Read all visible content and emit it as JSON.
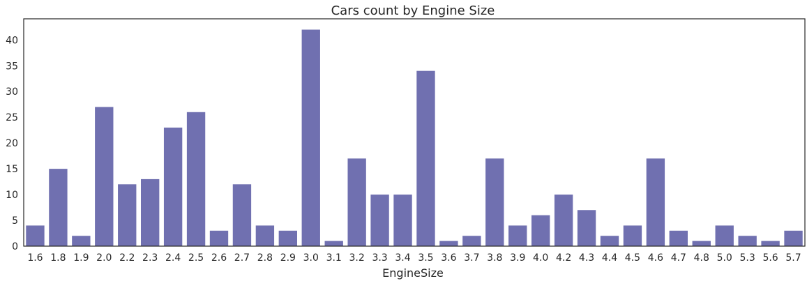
{
  "chart_data": {
    "type": "bar",
    "title": "Cars count by Engine Size",
    "xlabel": "EngineSize",
    "ylabel": "",
    "categories": [
      "1.6",
      "1.8",
      "1.9",
      "2.0",
      "2.2",
      "2.3",
      "2.4",
      "2.5",
      "2.6",
      "2.7",
      "2.8",
      "2.9",
      "3.0",
      "3.1",
      "3.2",
      "3.3",
      "3.4",
      "3.5",
      "3.6",
      "3.7",
      "3.8",
      "3.9",
      "4.0",
      "4.2",
      "4.3",
      "4.4",
      "4.5",
      "4.6",
      "4.7",
      "4.8",
      "5.0",
      "5.3",
      "5.6",
      "5.7"
    ],
    "values": [
      4,
      15,
      2,
      27,
      12,
      13,
      23,
      26,
      3,
      12,
      4,
      3,
      42,
      1,
      17,
      10,
      10,
      34,
      1,
      2,
      17,
      4,
      6,
      10,
      7,
      2,
      4,
      17,
      3,
      1,
      4,
      2,
      1,
      3
    ],
    "ylim": [
      0,
      44.1
    ],
    "yticks": [
      0,
      5,
      10,
      15,
      20,
      25,
      30,
      35,
      40
    ],
    "grid": false,
    "bar_color": "#7070b0"
  }
}
